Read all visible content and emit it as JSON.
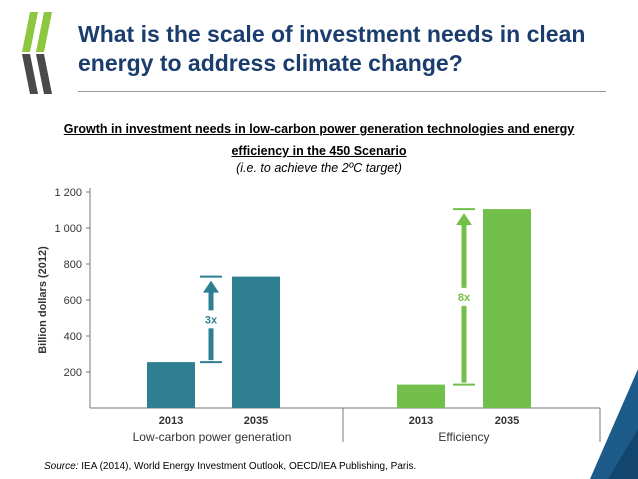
{
  "header": {
    "title": "What is the scale of investment needs in clean energy to address climate change?"
  },
  "chart_data": {
    "type": "bar",
    "title": "Growth in investment needs in low-carbon power generation technologies and energy efficiency in the 450 Scenario",
    "subtitle": "(i.e. to achieve the 2ºC target)",
    "ylabel": "Billion dollars (2012)",
    "ylim": [
      0,
      1200
    ],
    "yticks": [
      200,
      400,
      600,
      800,
      "1 000",
      "1 200"
    ],
    "groups": [
      {
        "name": "Low-carbon power generation",
        "color": "#2f7f93",
        "categories": [
          "2013",
          "2035"
        ],
        "values": [
          255,
          730
        ],
        "multiplier": "3x"
      },
      {
        "name": "Efficiency",
        "color": "#73bf4b",
        "categories": [
          "2013",
          "2035"
        ],
        "values": [
          130,
          1105
        ],
        "multiplier": "8x"
      }
    ]
  },
  "source": {
    "label": "Source:",
    "text": "IEA (2014), World Energy Investment Outlook, OECD/IEA Publishing, Paris."
  },
  "colors": {
    "title": "#1a3d6e",
    "logo_light": "#8dc63f",
    "logo_dark": "#4a4a4a",
    "corner": "#1d5c8a"
  }
}
